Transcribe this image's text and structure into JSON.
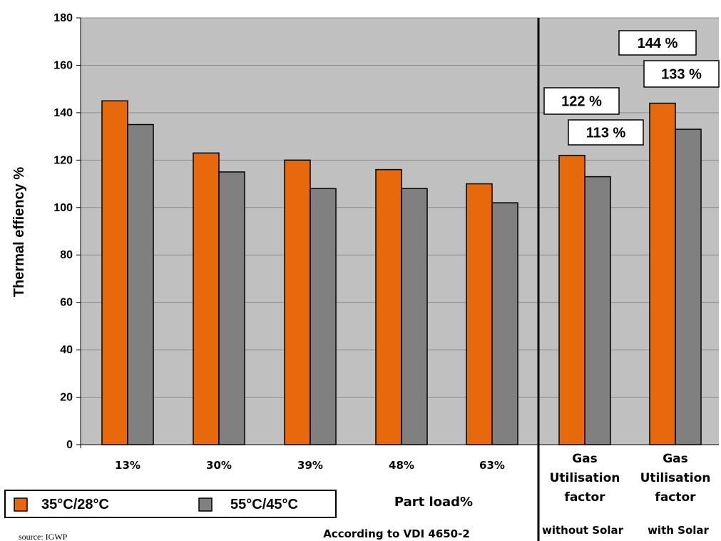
{
  "chart_data": {
    "type": "bar",
    "categories": [
      "13%",
      "30%",
      "39%",
      "48%",
      "63%",
      "Gas Utilisation factor",
      "Gas Utilisation factor"
    ],
    "category_lines": [
      [
        "13%"
      ],
      [
        "30%"
      ],
      [
        "39%"
      ],
      [
        "48%"
      ],
      [
        "63%"
      ],
      [
        "Gas",
        "Utilisation",
        "factor"
      ],
      [
        "Gas",
        "Utilisation",
        "factor"
      ]
    ],
    "series": [
      {
        "name": "35°C/28°C",
        "values": [
          145,
          123,
          120,
          116,
          110,
          122,
          144
        ],
        "color": "#e8690c"
      },
      {
        "name": "55°C/45°C",
        "values": [
          135,
          115,
          108,
          108,
          102,
          113,
          133
        ],
        "color": "#808080"
      }
    ],
    "ylabel": "Thermal effiency %",
    "xlabel": "Part load%",
    "ylim": [
      0,
      180
    ],
    "yticks": [
      0,
      20,
      40,
      60,
      80,
      100,
      120,
      140,
      160,
      180
    ],
    "grid": true,
    "plot_background": "#c0c0c0",
    "legend": "bottom-left",
    "divider_after_category": 5,
    "callouts": [
      {
        "text": "122 %",
        "category": 6,
        "row": 1
      },
      {
        "text": "113 %",
        "category": 6,
        "row": 2
      },
      {
        "text": "144 %",
        "category": 7,
        "row": 1
      },
      {
        "text": "133 %",
        "category": 7,
        "row": 2
      }
    ],
    "notes": {
      "vdi": "According to VDI 4650-2",
      "without_solar": "without Solar",
      "with_solar": "with Solar"
    }
  },
  "source": "source:   IGWP"
}
